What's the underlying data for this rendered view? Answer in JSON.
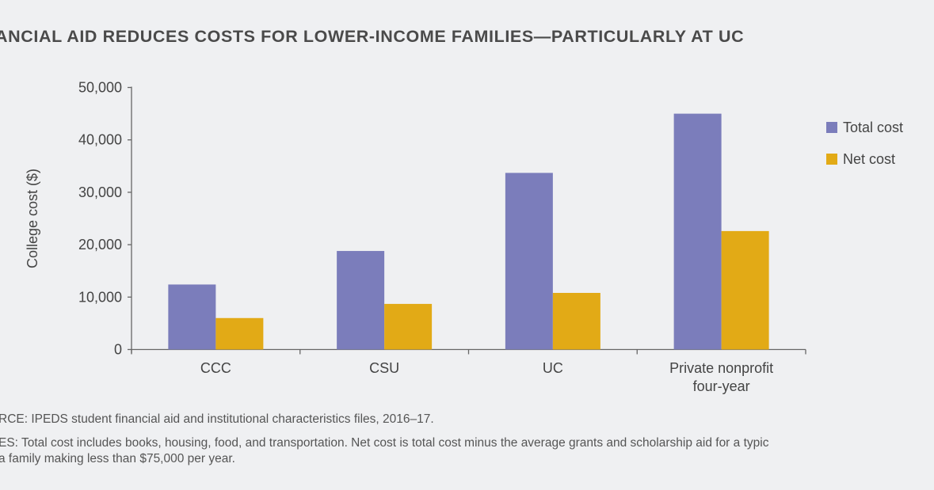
{
  "chart_data": {
    "type": "bar",
    "title": "ANCIAL AID REDUCES COSTS FOR LOWER-INCOME FAMILIES—PARTICULARLY AT UC",
    "xlabel": "",
    "ylabel": "College cost ($)",
    "ylim": [
      0,
      50000
    ],
    "yticks": [
      "0",
      "10,000",
      "20,000",
      "30,000",
      "40,000",
      "50,000"
    ],
    "categories": [
      "CCC",
      "CSU",
      "UC",
      "Private nonprofit\nfour-year"
    ],
    "series": [
      {
        "name": "Total cost",
        "color": "#7b7dbb",
        "values": [
          12400,
          18800,
          33700,
          45000
        ]
      },
      {
        "name": "Net cost",
        "color": "#e2aa16",
        "values": [
          6000,
          8700,
          10800,
          22600
        ]
      }
    ],
    "legend": "right",
    "grid": false
  },
  "notes": {
    "source": "RCE: IPEDS student financial aid and institutional characteristics files, 2016–17.",
    "notes_line1": "ES: Total cost includes books, housing, food, and transportation. Net cost is total cost minus the average grants and scholarship aid for a typic",
    "notes_line2": "a family making less than $75,000 per year."
  }
}
